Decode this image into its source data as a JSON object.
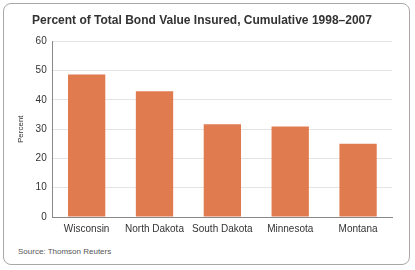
{
  "chart_data": {
    "type": "bar",
    "title": "Percent of Total Bond Value Insured, Cumulative 1998–2007",
    "y_label": "Percent",
    "source": "Source: Thomson Reuters",
    "categories": [
      "Wisconsin",
      "North Dakota",
      "South Dakota",
      "Minnesota",
      "Montana"
    ],
    "values": [
      48.7,
      43,
      31.7,
      30.9,
      25
    ],
    "color": "#e07b50",
    "ylim": [
      0,
      60
    ],
    "yticks": [
      0,
      10,
      20,
      30,
      40,
      50,
      60
    ],
    "grid": true
  }
}
